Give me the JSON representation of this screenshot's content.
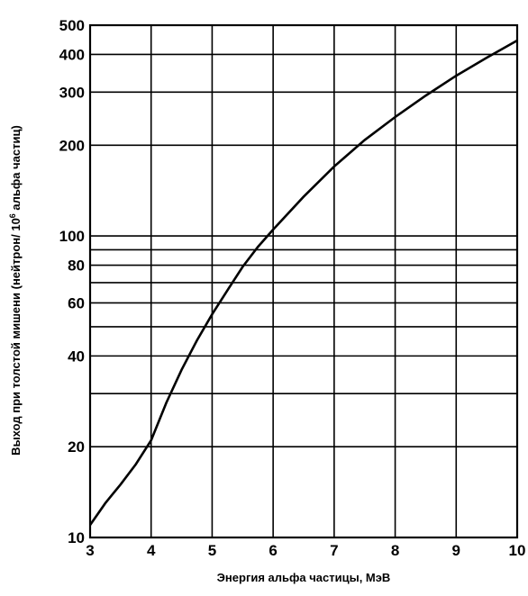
{
  "chart_data": {
    "type": "line",
    "title": "",
    "xlabel": "Энергия альфа частицы, МэВ",
    "ylabel_main": "Выход при толстой мишени (нейтрон/ 10",
    "ylabel_sup": "6",
    "ylabel_tail": " альфа частиц)",
    "x_scale": "linear",
    "y_scale": "log",
    "xlim": [
      3,
      10
    ],
    "ylim": [
      10,
      500
    ],
    "grid": true,
    "legend": "none",
    "x_ticks": [
      3,
      4,
      5,
      6,
      7,
      8,
      9,
      10
    ],
    "x_tick_labels": [
      "3",
      "4",
      "5",
      "6",
      "7",
      "8",
      "9",
      "10"
    ],
    "y_grid_values": [
      10,
      20,
      30,
      40,
      50,
      60,
      70,
      80,
      90,
      100,
      200,
      300,
      400,
      500
    ],
    "y_tick_values": [
      10,
      20,
      40,
      60,
      80,
      100,
      200,
      300,
      400,
      500
    ],
    "y_tick_labels": [
      "10",
      "20",
      "40",
      "60",
      "80",
      "100",
      "200",
      "300",
      "400",
      "500"
    ],
    "series": [
      {
        "x": [
          3.0,
          3.25,
          3.5,
          3.75,
          4.0,
          4.25,
          4.5,
          4.75,
          5.0,
          5.25,
          5.5,
          5.75,
          6.0,
          6.5,
          7.0,
          7.5,
          8.0,
          8.5,
          9.0,
          9.5,
          10.0
        ],
        "y": [
          11,
          13,
          15,
          17.5,
          21,
          28,
          36,
          45,
          55,
          66,
          79,
          92,
          105,
          135,
          170,
          208,
          248,
          292,
          340,
          390,
          445
        ]
      }
    ]
  }
}
